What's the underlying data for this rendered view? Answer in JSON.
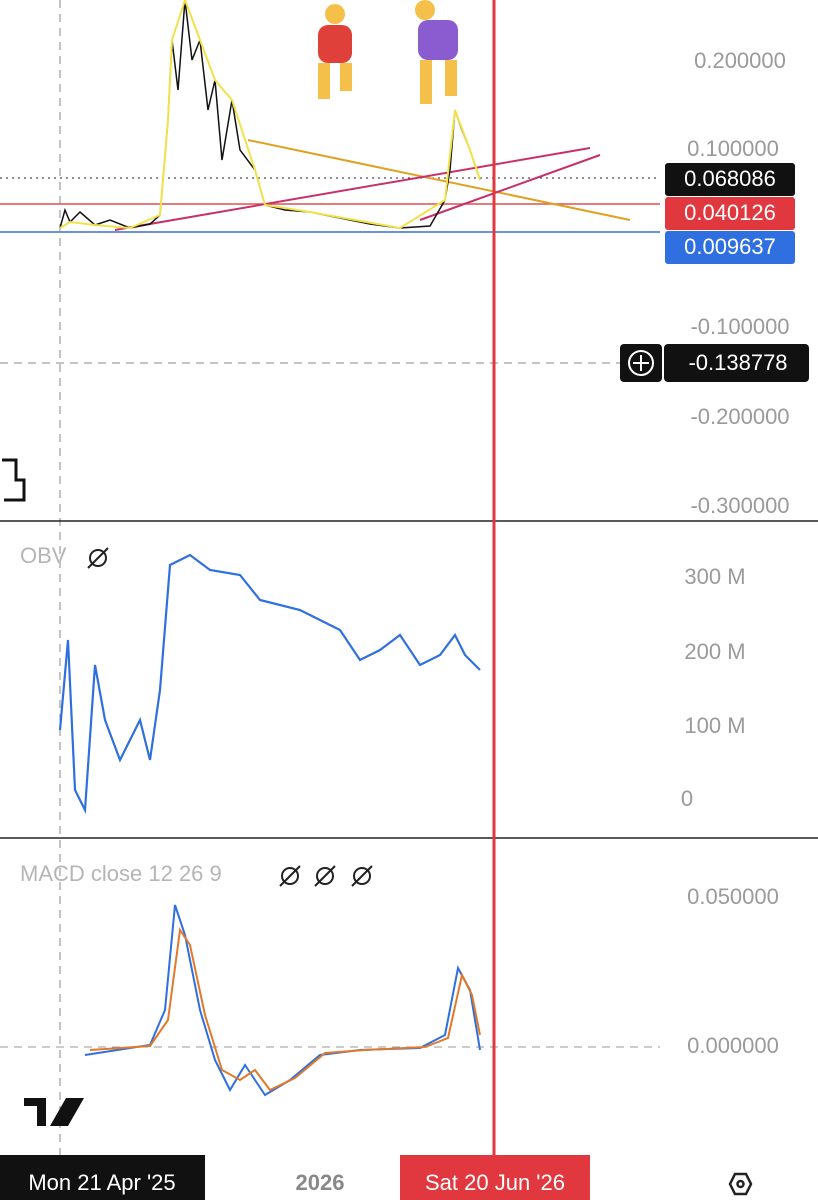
{
  "price_axis": {
    "ticks": [
      "0.200000",
      "0.100000",
      "-0.100000",
      "-0.200000",
      "-0.300000"
    ],
    "last_price": "0.068086",
    "line_1": "0.040126",
    "line_2": "0.009637",
    "crosshair_price": "-0.138778"
  },
  "obv": {
    "label": "OBV",
    "ticks": [
      "300 M",
      "200 M",
      "100 M",
      "0"
    ]
  },
  "macd": {
    "label": "MACD close 12 26 9",
    "ticks": [
      "0.050000",
      "0.000000"
    ]
  },
  "time_axis": {
    "start_date": "Mon 21 Apr '25",
    "year": "2026",
    "crosshair_date": "Sat 20 Jun '26"
  }
}
